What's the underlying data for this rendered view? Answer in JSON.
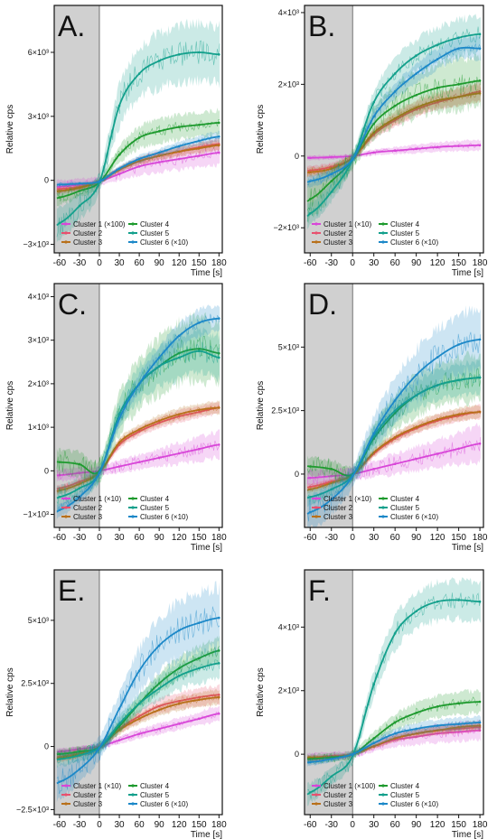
{
  "x_axis_label": "Time [s]",
  "y_axis_label": "Relative cps",
  "x_ticks": [
    "-60",
    "-30",
    "0",
    "30",
    "60",
    "90",
    "120",
    "150",
    "180"
  ],
  "x_range": [
    -68,
    185
  ],
  "stimulus_shading": [
    -68,
    0
  ],
  "colors": {
    "Cluster 1": "#d846d8",
    "Cluster 2": "#e8506e",
    "Cluster 3": "#b8701a",
    "Cluster 4": "#1e9a2e",
    "Cluster 5": "#13a08c",
    "Cluster 6": "#1c88c8",
    "stim_shade": "#d0d0d0"
  },
  "chart_data": [
    {
      "type": "line",
      "panel_label": "A.",
      "ylim": [
        -3400,
        8200
      ],
      "y_ticks": [
        {
          "v": -3000,
          "t": "−3×10³"
        },
        {
          "v": 0,
          "t": "0"
        },
        {
          "v": 3000,
          "t": "3×10³"
        },
        {
          "v": 6000,
          "t": "6×10³"
        }
      ],
      "x": [
        -60,
        -30,
        0,
        30,
        60,
        90,
        120,
        150,
        180
      ],
      "legend": [
        "Cluster 1 (×100)",
        "Cluster 2",
        "Cluster 3",
        "Cluster 4",
        "Cluster 5",
        "Cluster 6 (×10)"
      ],
      "series": [
        {
          "cluster": "Cluster 1",
          "values": [
            -300,
            -200,
            -50,
            300,
            650,
            850,
            1000,
            1150,
            1300
          ],
          "band": 600
        },
        {
          "cluster": "Cluster 2",
          "values": [
            -400,
            -300,
            -50,
            500,
            900,
            1150,
            1350,
            1550,
            1700
          ],
          "band": 250
        },
        {
          "cluster": "Cluster 3",
          "values": [
            -500,
            -350,
            -50,
            500,
            900,
            1150,
            1350,
            1500,
            1650
          ],
          "band": 250
        },
        {
          "cluster": "Cluster 4",
          "values": [
            -800,
            -500,
            -100,
            1200,
            2000,
            2300,
            2500,
            2600,
            2700
          ],
          "band": 600
        },
        {
          "cluster": "Cluster 5",
          "values": [
            -2000,
            -1200,
            -100,
            3500,
            5000,
            5600,
            5900,
            6000,
            5900
          ],
          "band": 1300
        },
        {
          "cluster": "Cluster 6",
          "values": [
            -200,
            -150,
            -50,
            550,
            1000,
            1300,
            1600,
            1850,
            2050
          ],
          "band": 250
        }
      ]
    },
    {
      "type": "line",
      "panel_label": "B.",
      "ylim": [
        -2700,
        4200
      ],
      "y_ticks": [
        {
          "v": -2000,
          "t": "−2×10³"
        },
        {
          "v": 0,
          "t": "0"
        },
        {
          "v": 2000,
          "t": "2×10³"
        },
        {
          "v": 4000,
          "t": "4×10³"
        }
      ],
      "x": [
        -60,
        -30,
        0,
        30,
        60,
        90,
        120,
        150,
        180
      ],
      "legend": [
        "Cluster 1 (×10)",
        "Cluster 2",
        "Cluster 3",
        "Cluster 4",
        "Cluster 5",
        "Cluster 6 (×10)"
      ],
      "series": [
        {
          "cluster": "Cluster 1",
          "values": [
            -50,
            -30,
            0,
            100,
            150,
            200,
            250,
            280,
            300
          ],
          "band": 150
        },
        {
          "cluster": "Cluster 2",
          "values": [
            -400,
            -300,
            -50,
            600,
            1000,
            1300,
            1500,
            1650,
            1800
          ],
          "band": 250
        },
        {
          "cluster": "Cluster 3",
          "values": [
            -450,
            -350,
            -50,
            650,
            1050,
            1350,
            1550,
            1650,
            1750
          ],
          "band": 250
        },
        {
          "cluster": "Cluster 4",
          "values": [
            -1200,
            -700,
            -100,
            900,
            1400,
            1700,
            1900,
            2000,
            2100
          ],
          "band": 700
        },
        {
          "cluster": "Cluster 5",
          "values": [
            -1600,
            -1000,
            -100,
            1500,
            2300,
            2800,
            3100,
            3300,
            3400
          ],
          "band": 500
        },
        {
          "cluster": "Cluster 6",
          "values": [
            -700,
            -500,
            -80,
            1100,
            1800,
            2300,
            2700,
            3000,
            3000
          ],
          "band": 300
        }
      ]
    },
    {
      "type": "line",
      "panel_label": "C.",
      "ylim": [
        -1300,
        4300
      ],
      "y_ticks": [
        {
          "v": -1000,
          "t": "−1×10³"
        },
        {
          "v": 0,
          "t": "0"
        },
        {
          "v": 1000,
          "t": "1×10³"
        },
        {
          "v": 2000,
          "t": "2×10³"
        },
        {
          "v": 3000,
          "t": "3×10³"
        },
        {
          "v": 4000,
          "t": "4×10³"
        }
      ],
      "x": [
        -60,
        -30,
        0,
        30,
        60,
        90,
        120,
        150,
        180
      ],
      "legend": [
        "Cluster 1 (×10)",
        "Cluster 2",
        "Cluster 3",
        "Cluster 4",
        "Cluster 5",
        "Cluster 6 (×10)"
      ],
      "series": [
        {
          "cluster": "Cluster 1",
          "values": [
            -100,
            -50,
            0,
            100,
            200,
            300,
            400,
            500,
            600
          ],
          "band": 300
        },
        {
          "cluster": "Cluster 2",
          "values": [
            -400,
            -250,
            -30,
            600,
            900,
            1100,
            1250,
            1350,
            1450
          ],
          "band": 150
        },
        {
          "cluster": "Cluster 3",
          "values": [
            -450,
            -300,
            -30,
            650,
            950,
            1150,
            1300,
            1400,
            1450
          ],
          "band": 150
        },
        {
          "cluster": "Cluster 4",
          "values": [
            200,
            150,
            0,
            1300,
            2000,
            2400,
            2700,
            2800,
            2700
          ],
          "band": 700
        },
        {
          "cluster": "Cluster 5",
          "values": [
            -600,
            -400,
            -50,
            1300,
            2000,
            2400,
            2600,
            2750,
            2600
          ],
          "band": 500
        },
        {
          "cluster": "Cluster 6",
          "values": [
            -900,
            -600,
            -50,
            1200,
            2000,
            2600,
            3100,
            3400,
            3500
          ],
          "band": 300
        }
      ]
    },
    {
      "type": "line",
      "panel_label": "D.",
      "ylim": [
        -2100,
        7500
      ],
      "y_ticks": [
        {
          "v": 0,
          "t": "0"
        },
        {
          "v": 2500,
          "t": "2.5×10³"
        },
        {
          "v": 5000,
          "t": "5×10³"
        }
      ],
      "x": [
        -60,
        -30,
        0,
        30,
        60,
        90,
        120,
        150,
        180
      ],
      "legend": [
        "Cluster 1 (×10)",
        "Cluster 2",
        "Cluster 3",
        "Cluster 4",
        "Cluster 5",
        "Cluster 6 (×10)"
      ],
      "series": [
        {
          "cluster": "Cluster 1",
          "values": [
            -150,
            -80,
            0,
            200,
            400,
            600,
            800,
            1000,
            1200
          ],
          "band": 700
        },
        {
          "cluster": "Cluster 2",
          "values": [
            -500,
            -300,
            -30,
            800,
            1400,
            1800,
            2100,
            2300,
            2450
          ],
          "band": 250
        },
        {
          "cluster": "Cluster 3",
          "values": [
            -600,
            -350,
            -30,
            850,
            1450,
            1850,
            2150,
            2350,
            2450
          ],
          "band": 250
        },
        {
          "cluster": "Cluster 4",
          "values": [
            300,
            200,
            0,
            1400,
            2400,
            3100,
            3500,
            3700,
            3800
          ],
          "band": 900
        },
        {
          "cluster": "Cluster 5",
          "values": [
            -900,
            -600,
            -50,
            1500,
            2500,
            3100,
            3500,
            3700,
            3800
          ],
          "band": 600
        },
        {
          "cluster": "Cluster 6",
          "values": [
            -1500,
            -1000,
            -80,
            1600,
            2900,
            3900,
            4600,
            5100,
            5300
          ],
          "band": 1200
        }
      ]
    },
    {
      "type": "line",
      "panel_label": "E.",
      "ylim": [
        -2700,
        7000
      ],
      "y_ticks": [
        {
          "v": -2500,
          "t": "−2.5×10³"
        },
        {
          "v": 0,
          "t": "0"
        },
        {
          "v": 2500,
          "t": "2.5×10³"
        },
        {
          "v": 5000,
          "t": "5×10³"
        }
      ],
      "x": [
        -60,
        -30,
        0,
        30,
        60,
        90,
        120,
        150,
        180
      ],
      "legend": [
        "Cluster 1 (×10)",
        "Cluster 2",
        "Cluster 3",
        "Cluster 4",
        "Cluster 5",
        "Cluster 6 (×10)"
      ],
      "series": [
        {
          "cluster": "Cluster 1",
          "values": [
            -200,
            -100,
            0,
            250,
            500,
            700,
            900,
            1100,
            1300
          ],
          "band": 300
        },
        {
          "cluster": "Cluster 2",
          "values": [
            -400,
            -250,
            -30,
            700,
            1200,
            1600,
            1800,
            1950,
            2050
          ],
          "band": 350
        },
        {
          "cluster": "Cluster 3",
          "values": [
            -450,
            -300,
            -30,
            650,
            1100,
            1450,
            1700,
            1850,
            1950
          ],
          "band": 300
        },
        {
          "cluster": "Cluster 4",
          "values": [
            -300,
            -200,
            -30,
            800,
            1700,
            2500,
            3100,
            3500,
            3800
          ],
          "band": 500
        },
        {
          "cluster": "Cluster 5",
          "values": [
            -500,
            -350,
            -40,
            900,
            1700,
            2300,
            2800,
            3100,
            3300
          ],
          "band": 600
        },
        {
          "cluster": "Cluster 6",
          "values": [
            -1400,
            -900,
            -60,
            1500,
            3000,
            4000,
            4600,
            4900,
            5100
          ],
          "band": 1200
        }
      ]
    },
    {
      "type": "line",
      "panel_label": "F.",
      "ylim": [
        -1900,
        5800
      ],
      "y_ticks": [
        {
          "v": 0,
          "t": "0"
        },
        {
          "v": 2000,
          "t": "2×10³"
        },
        {
          "v": 4000,
          "t": "4×10³"
        }
      ],
      "x": [
        -60,
        -30,
        0,
        30,
        60,
        90,
        120,
        150,
        180
      ],
      "legend": [
        "Cluster 1 (×100)",
        "Cluster 2",
        "Cluster 3",
        "Cluster 4",
        "Cluster 5",
        "Cluster 6 (×10)"
      ],
      "series": [
        {
          "cluster": "Cluster 1",
          "values": [
            -100,
            -50,
            0,
            250,
            450,
            550,
            650,
            700,
            750
          ],
          "band": 300
        },
        {
          "cluster": "Cluster 2",
          "values": [
            -150,
            -100,
            0,
            250,
            500,
            650,
            750,
            800,
            850
          ],
          "band": 150
        },
        {
          "cluster": "Cluster 3",
          "values": [
            -100,
            -80,
            0,
            250,
            500,
            650,
            750,
            850,
            900
          ],
          "band": 150
        },
        {
          "cluster": "Cluster 4",
          "values": [
            -150,
            -100,
            0,
            500,
            1000,
            1300,
            1500,
            1600,
            1650
          ],
          "band": 350
        },
        {
          "cluster": "Cluster 5",
          "values": [
            -1200,
            -700,
            -50,
            2200,
            3800,
            4500,
            4800,
            4850,
            4800
          ],
          "band": 600
        },
        {
          "cluster": "Cluster 6",
          "values": [
            -250,
            -150,
            0,
            350,
            650,
            800,
            900,
            950,
            1000
          ],
          "band": 200
        }
      ]
    }
  ]
}
